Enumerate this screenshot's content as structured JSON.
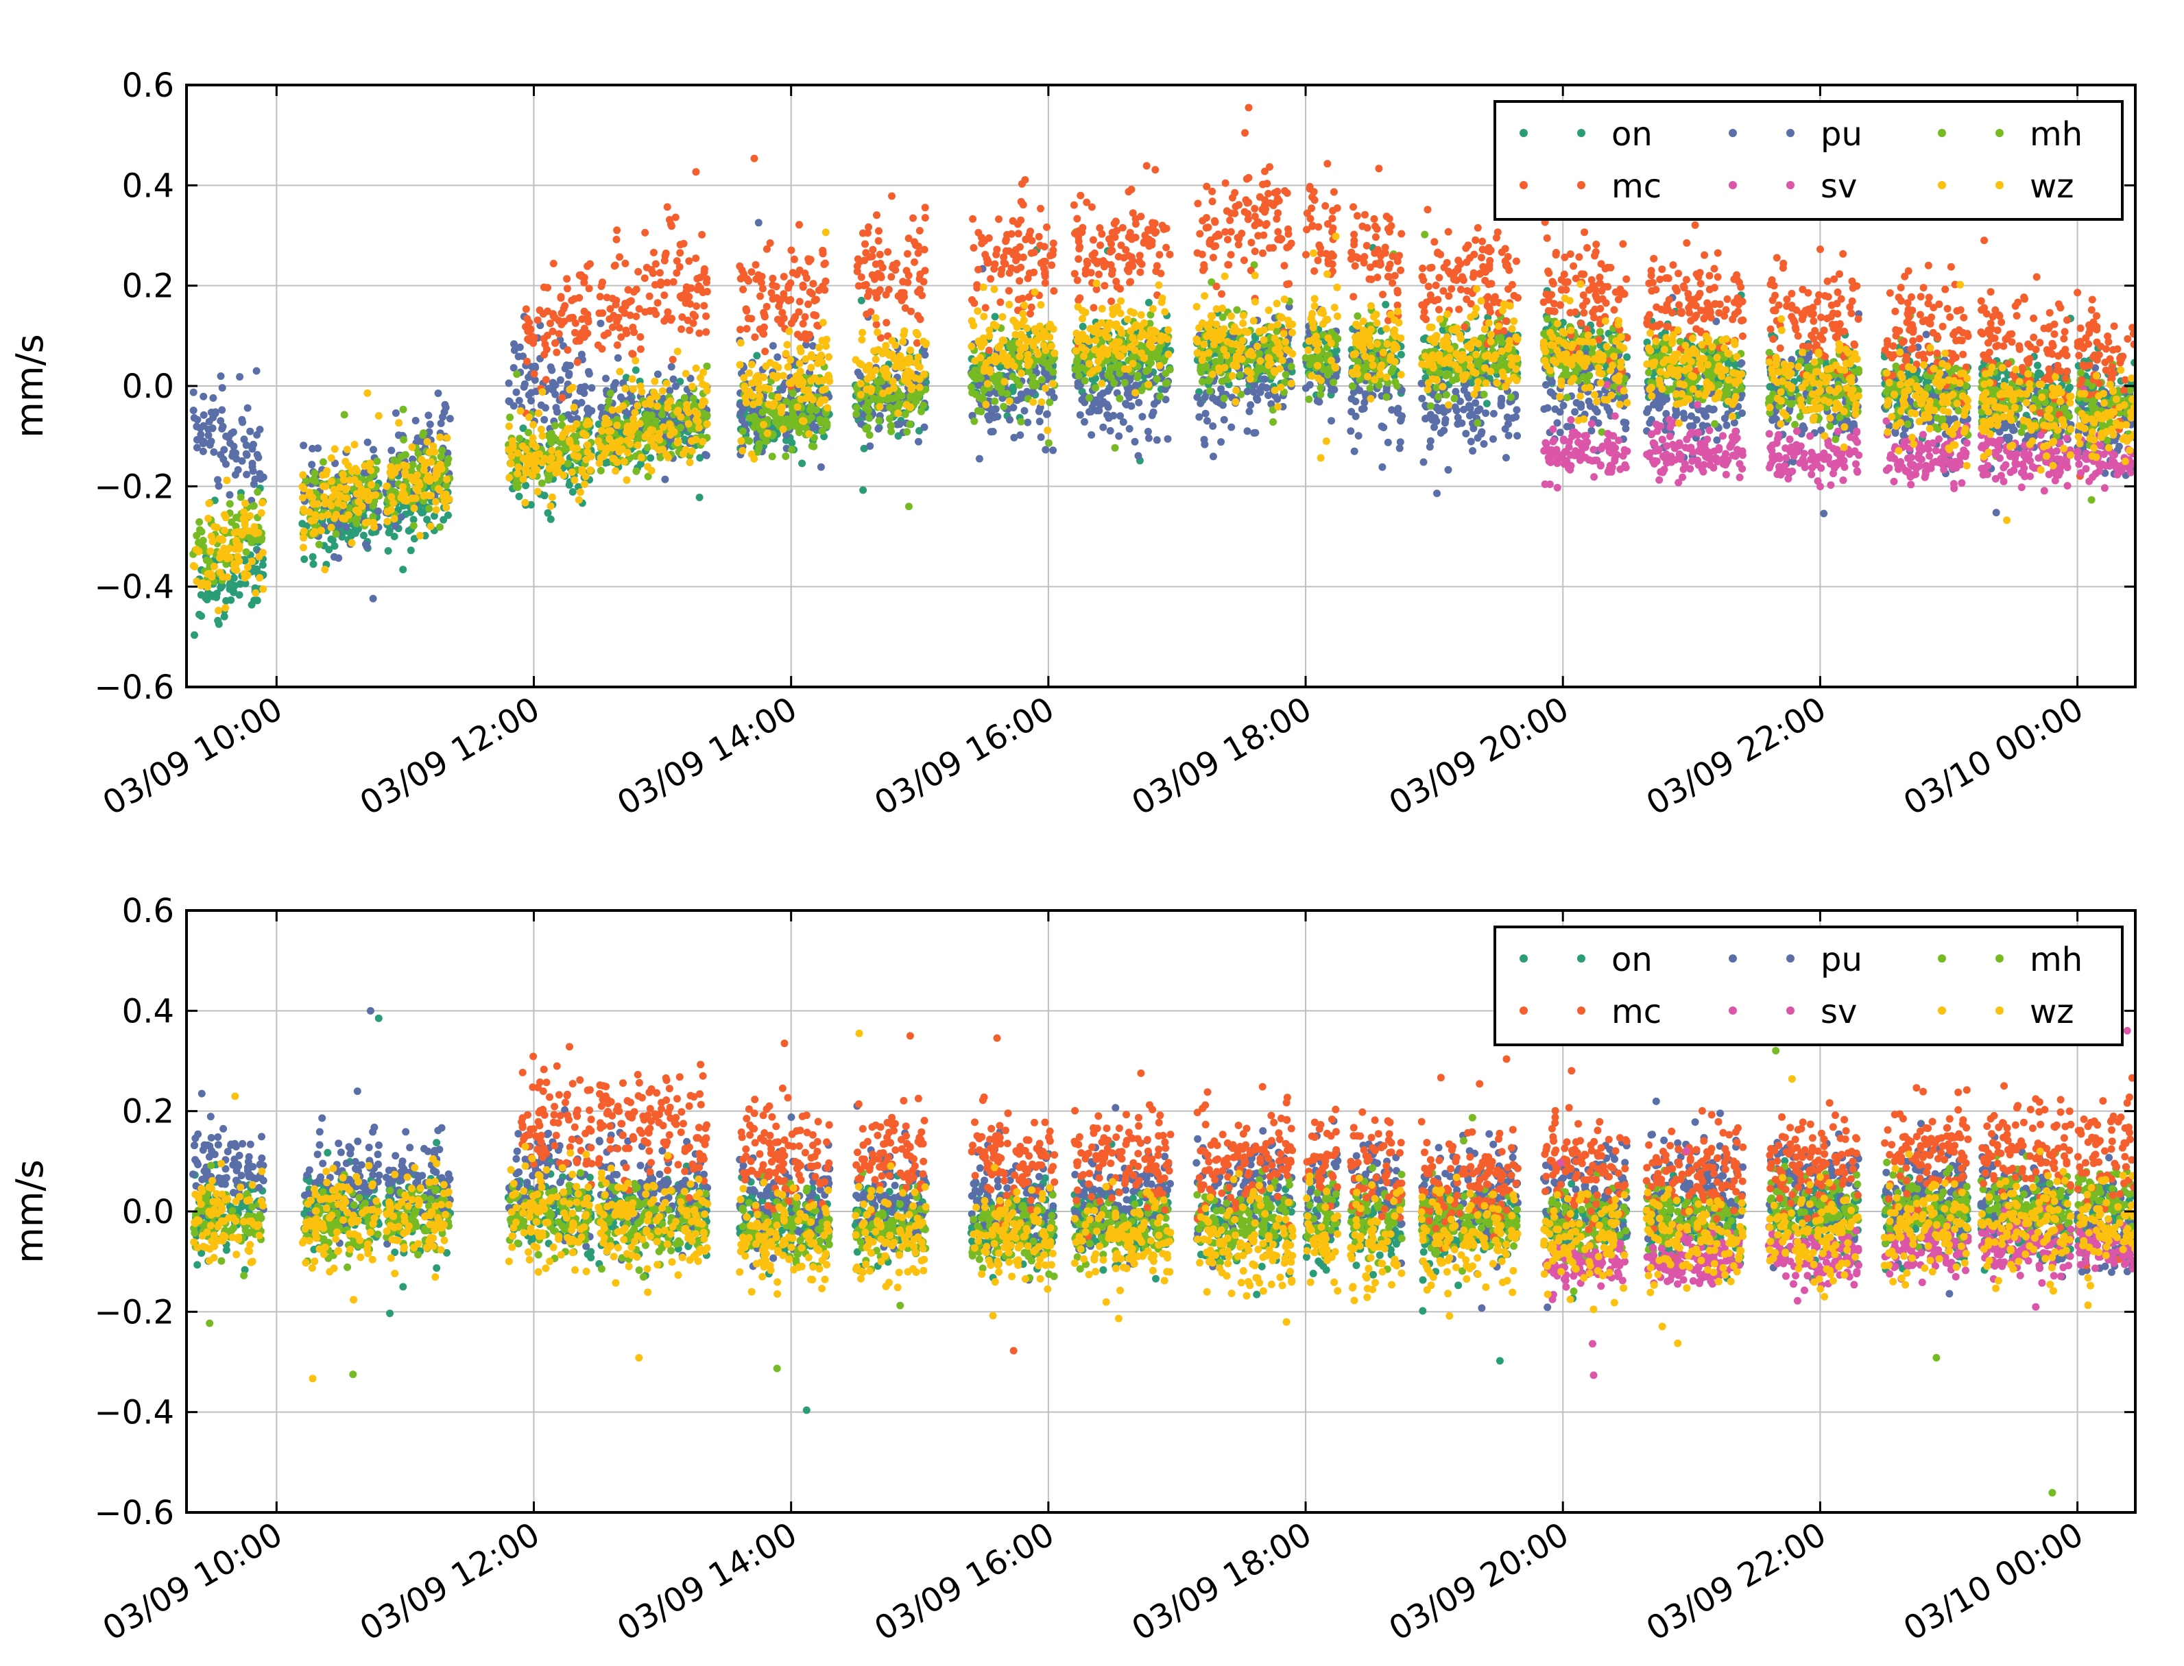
{
  "chart_data": [
    {
      "type": "scatter",
      "title": "",
      "xlabel": "",
      "ylabel": "mm/s",
      "ylim": [
        -0.6,
        0.6
      ],
      "y_ticks": [
        "0.6",
        "0.4",
        "0.2",
        "0.0",
        "−0.2",
        "−0.4",
        "−0.6"
      ],
      "y_tick_values": [
        0.6,
        0.4,
        0.2,
        0.0,
        -0.2,
        -0.4,
        -0.6
      ],
      "x_range_hours": [
        9.3,
        24.45
      ],
      "x_tick_hours": [
        10,
        12,
        14,
        16,
        18,
        20,
        22,
        24
      ],
      "x_ticks": [
        "03/09 10:00",
        "03/09 12:00",
        "03/09 14:00",
        "03/09 16:00",
        "03/09 18:00",
        "03/09 20:00",
        "03/09 22:00",
        "03/10 00:00"
      ],
      "grid": true,
      "legend": {
        "placement": "top-right",
        "entries": [
          "on",
          "pu",
          "mh",
          "mc",
          "sv",
          "wz"
        ]
      },
      "segments": [
        [
          9.35,
          9.9
        ],
        [
          10.2,
          10.8
        ],
        [
          10.85,
          11.35
        ],
        [
          11.8,
          12.45
        ],
        [
          12.5,
          13.35
        ],
        [
          13.6,
          14.3
        ],
        [
          14.5,
          15.05
        ],
        [
          15.4,
          16.05
        ],
        [
          16.2,
          16.95
        ],
        [
          17.15,
          17.9
        ],
        [
          18.0,
          18.25
        ],
        [
          18.35,
          18.75
        ],
        [
          18.9,
          19.65
        ],
        [
          19.85,
          20.5
        ],
        [
          20.65,
          21.4
        ],
        [
          21.6,
          22.3
        ],
        [
          22.5,
          23.15
        ],
        [
          23.25,
          23.95
        ],
        [
          24.0,
          24.45
        ]
      ],
      "series": [
        {
          "name": "on",
          "color": "#2a9d78",
          "trend_hours": [
            9.5,
            10.5,
            12,
            13,
            14,
            15,
            16,
            17,
            18,
            19,
            20,
            21,
            22,
            23,
            24.4
          ],
          "trend_values": [
            -0.4,
            -0.27,
            -0.17,
            -0.07,
            -0.06,
            0.0,
            0.05,
            0.06,
            0.06,
            0.05,
            0.08,
            0.03,
            0.01,
            0.0,
            -0.02
          ],
          "spread": 0.035,
          "start": 9.35
        },
        {
          "name": "pu",
          "color": "#5a6fa8",
          "trend_hours": [
            9.5,
            10.5,
            12,
            13,
            14,
            15,
            16,
            17,
            18,
            19,
            20,
            21,
            22,
            23,
            24.4
          ],
          "trend_values": [
            -0.09,
            -0.25,
            0.02,
            -0.08,
            -0.02,
            -0.02,
            0.0,
            -0.02,
            0.05,
            -0.05,
            0.0,
            -0.05,
            -0.03,
            -0.05,
            -0.08
          ],
          "spread": 0.05,
          "start": 9.35
        },
        {
          "name": "mh",
          "color": "#76bb23",
          "trend_hours": [
            9.5,
            10.5,
            12,
            13,
            14,
            15,
            16,
            17,
            18,
            19,
            20,
            21,
            22,
            23,
            24.4
          ],
          "trend_values": [
            -0.32,
            -0.22,
            -0.14,
            -0.08,
            -0.06,
            -0.01,
            0.05,
            0.06,
            0.06,
            0.05,
            0.07,
            0.03,
            -0.01,
            -0.02,
            -0.05
          ],
          "spread": 0.035,
          "start": 9.35
        },
        {
          "name": "mc",
          "color": "#f55f2d",
          "trend_hours": [
            11.9,
            13,
            14,
            15,
            16,
            17,
            17.7,
            18.5,
            19,
            20,
            21,
            22,
            23,
            24.4
          ],
          "trend_values": [
            0.1,
            0.19,
            0.18,
            0.24,
            0.26,
            0.3,
            0.35,
            0.27,
            0.22,
            0.2,
            0.17,
            0.14,
            0.1,
            0.06
          ],
          "spread": 0.055,
          "start": 11.9
        },
        {
          "name": "sv",
          "color": "#db56a8",
          "trend_hours": [
            19.85,
            21,
            22,
            23,
            24.4
          ],
          "trend_values": [
            -0.13,
            -0.13,
            -0.14,
            -0.14,
            -0.15
          ],
          "spread": 0.025,
          "start": 19.85
        },
        {
          "name": "wz",
          "color": "#fcc10e",
          "trend_hours": [
            9.5,
            10.5,
            12,
            13,
            14,
            15,
            16,
            17,
            18,
            19,
            20,
            21,
            22,
            23,
            24.4
          ],
          "trend_values": [
            -0.35,
            -0.22,
            -0.14,
            -0.07,
            0.01,
            0.05,
            0.09,
            0.1,
            0.09,
            0.07,
            0.06,
            0.03,
            0.0,
            -0.04,
            -0.07
          ],
          "spread": 0.045,
          "start": 9.35
        }
      ]
    },
    {
      "type": "scatter",
      "title": "",
      "xlabel": "",
      "ylabel": "mm/s",
      "ylim": [
        -0.6,
        0.6
      ],
      "y_ticks": [
        "0.6",
        "0.4",
        "0.2",
        "0.0",
        "−0.2",
        "−0.4",
        "−0.6"
      ],
      "y_tick_values": [
        0.6,
        0.4,
        0.2,
        0.0,
        -0.2,
        -0.4,
        -0.6
      ],
      "x_range_hours": [
        9.3,
        24.45
      ],
      "x_tick_hours": [
        10,
        12,
        14,
        16,
        18,
        20,
        22,
        24
      ],
      "x_ticks": [
        "03/09 10:00",
        "03/09 12:00",
        "03/09 14:00",
        "03/09 16:00",
        "03/09 18:00",
        "03/09 20:00",
        "03/09 22:00",
        "03/10 00:00"
      ],
      "grid": true,
      "legend": {
        "placement": "top-right",
        "entries": [
          "on",
          "pu",
          "mh",
          "mc",
          "sv",
          "wz"
        ]
      },
      "segments": [
        [
          9.35,
          9.9
        ],
        [
          10.2,
          10.8
        ],
        [
          10.85,
          11.35
        ],
        [
          11.8,
          12.45
        ],
        [
          12.5,
          13.35
        ],
        [
          13.6,
          14.3
        ],
        [
          14.5,
          15.05
        ],
        [
          15.4,
          16.05
        ],
        [
          16.2,
          16.95
        ],
        [
          17.15,
          17.9
        ],
        [
          18.0,
          18.25
        ],
        [
          18.35,
          18.75
        ],
        [
          18.9,
          19.65
        ],
        [
          19.85,
          20.5
        ],
        [
          20.65,
          21.4
        ],
        [
          21.6,
          22.3
        ],
        [
          22.5,
          23.15
        ],
        [
          23.25,
          23.95
        ],
        [
          24.0,
          24.45
        ]
      ],
      "series": [
        {
          "name": "on",
          "color": "#2a9d78",
          "trend_hours": [
            9.5,
            12,
            14,
            16,
            18,
            20,
            22,
            24.4
          ],
          "trend_values": [
            0.0,
            0.0,
            -0.02,
            -0.02,
            -0.03,
            -0.03,
            -0.02,
            -0.02
          ],
          "spread": 0.04,
          "start": 9.35
        },
        {
          "name": "pu",
          "color": "#5a6fa8",
          "trend_hours": [
            9.5,
            12,
            14,
            16,
            18,
            19,
            20,
            21,
            22,
            23,
            24.4
          ],
          "trend_values": [
            0.08,
            0.05,
            0.03,
            0.02,
            0.06,
            0.05,
            0.03,
            0.06,
            0.04,
            0.06,
            -0.05
          ],
          "spread": 0.05,
          "start": 9.35
        },
        {
          "name": "mh",
          "color": "#76bb23",
          "trend_hours": [
            9.5,
            12,
            14,
            16,
            18,
            20,
            22,
            24.4
          ],
          "trend_values": [
            -0.02,
            -0.01,
            -0.03,
            -0.04,
            -0.01,
            -0.03,
            0.0,
            0.02
          ],
          "spread": 0.035,
          "start": 9.35
        },
        {
          "name": "mc",
          "color": "#f55f2d",
          "trend_hours": [
            11.9,
            13,
            14,
            15,
            16,
            17,
            18,
            19,
            20,
            21,
            22,
            23,
            24.4
          ],
          "trend_values": [
            0.18,
            0.17,
            0.1,
            0.12,
            0.1,
            0.09,
            0.12,
            0.05,
            0.09,
            0.07,
            0.1,
            0.13,
            0.12
          ],
          "spread": 0.05,
          "start": 11.9
        },
        {
          "name": "sv",
          "color": "#db56a8",
          "trend_hours": [
            19.85,
            21,
            22,
            23,
            24.4
          ],
          "trend_values": [
            -0.1,
            -0.1,
            -0.09,
            -0.07,
            -0.07
          ],
          "spread": 0.025,
          "start": 19.85
        },
        {
          "name": "wz",
          "color": "#fcc10e",
          "trend_hours": [
            9.5,
            12,
            14,
            16,
            18,
            20,
            22,
            24.4
          ],
          "trend_values": [
            -0.01,
            -0.01,
            -0.05,
            -0.06,
            -0.06,
            -0.06,
            -0.05,
            -0.02
          ],
          "spread": 0.05,
          "start": 9.35
        }
      ]
    }
  ]
}
